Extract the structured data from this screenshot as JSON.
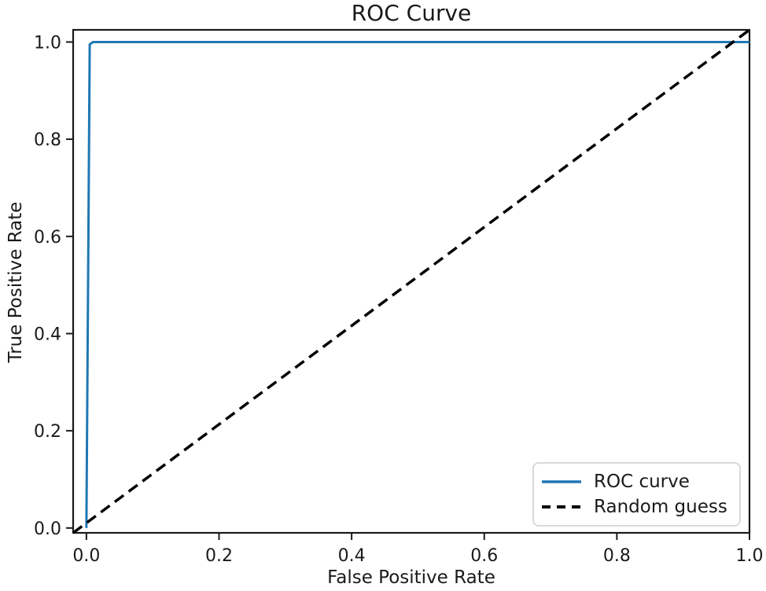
{
  "page": {
    "background": "#ffffff"
  },
  "chart_data": {
    "type": "line",
    "title": "ROC Curve",
    "xlabel": "False Positive Rate",
    "ylabel": "True Positive Rate",
    "xlim": [
      -0.02,
      1.0
    ],
    "ylim": [
      -0.01,
      1.025
    ],
    "x_tick_values": [
      0.0,
      0.2,
      0.4,
      0.6,
      0.8,
      1.0
    ],
    "x_tick_labels": [
      "0.0",
      "0.2",
      "0.4",
      "0.6",
      "0.8",
      "1.0"
    ],
    "y_tick_values": [
      0.0,
      0.2,
      0.4,
      0.6,
      0.8,
      1.0
    ],
    "y_tick_labels": [
      "0.0",
      "0.2",
      "0.4",
      "0.6",
      "0.8",
      "1.0"
    ],
    "grid": false,
    "legend_position": "lower right",
    "axis_color": "#1a1a1a",
    "text_color": "#1a1a1a",
    "series": [
      {
        "name": "ROC curve",
        "color": "#1f77b4",
        "style": "solid",
        "width": 3,
        "points": [
          [
            0.0,
            0.0
          ],
          [
            0.005,
            0.995
          ],
          [
            0.01,
            1.0
          ],
          [
            1.0,
            1.0
          ]
        ]
      },
      {
        "name": "Random guess",
        "color": "#000000",
        "style": "dashed",
        "width": 3.5,
        "dasharray": "14 8",
        "points": [
          [
            0.0,
            0.0
          ],
          [
            1.0,
            1.0
          ]
        ],
        "spans_plot_corners": true
      }
    ]
  }
}
